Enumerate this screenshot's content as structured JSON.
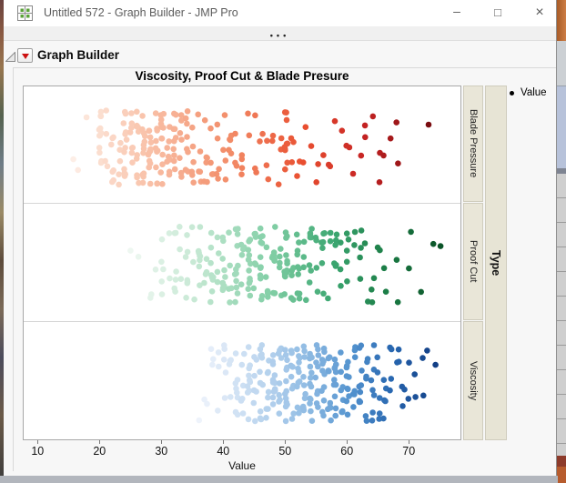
{
  "window": {
    "title": "Untitled 572 - Graph Builder - JMP Pro",
    "overflow_dots": "•••"
  },
  "icons": {
    "minimize": "–",
    "maximize": "□",
    "close": "×",
    "legend_dot": "●"
  },
  "outline": {
    "title": "Graph Builder"
  },
  "chart_data": {
    "type": "scatter",
    "variant": "jittered-dot-plot-faceted",
    "title": "Viscosity, Proof Cut & Blade Presure",
    "xlabel": "Value",
    "legend_label": "Value",
    "facet_label": "Type",
    "x_ticks": [
      10,
      20,
      30,
      40,
      50,
      60,
      70
    ],
    "x_range": [
      7.6,
      78.2
    ],
    "grid": false,
    "legend_position": "right-top",
    "panels": [
      {
        "label": "Blade Pressure",
        "colors": [
          "#fdeee6",
          "#f9c4ac",
          "#f28a66",
          "#e94f30",
          "#c62323",
          "#7a0c10"
        ],
        "columns": [
          [
            15.5,
            1
          ],
          [
            16.5,
            1
          ],
          [
            18,
            1
          ],
          [
            20,
            12
          ],
          [
            21,
            4
          ],
          [
            22,
            7
          ],
          [
            23,
            5
          ],
          [
            24,
            12
          ],
          [
            25,
            8
          ],
          [
            26,
            10
          ],
          [
            27,
            12
          ],
          [
            28,
            13
          ],
          [
            29,
            10
          ],
          [
            30,
            12
          ],
          [
            31,
            8
          ],
          [
            32,
            10
          ],
          [
            33,
            7
          ],
          [
            34,
            8
          ],
          [
            35,
            6
          ],
          [
            36,
            5
          ],
          [
            37,
            6
          ],
          [
            38,
            4
          ],
          [
            39,
            5
          ],
          [
            40,
            4
          ],
          [
            41,
            5
          ],
          [
            42,
            3
          ],
          [
            43,
            4
          ],
          [
            44,
            2
          ],
          [
            45,
            3
          ],
          [
            46,
            2
          ],
          [
            47,
            3
          ],
          [
            48,
            2
          ],
          [
            49,
            3
          ],
          [
            50,
            10
          ],
          [
            51,
            3
          ],
          [
            52,
            2
          ],
          [
            53,
            2
          ],
          [
            54,
            1
          ],
          [
            55,
            2
          ],
          [
            56,
            1
          ],
          [
            57,
            2
          ],
          [
            58,
            1
          ],
          [
            59,
            1
          ],
          [
            60,
            2
          ],
          [
            61,
            1
          ],
          [
            62,
            1
          ],
          [
            63,
            2
          ],
          [
            64,
            1
          ],
          [
            65,
            2
          ],
          [
            66,
            1
          ],
          [
            67,
            1
          ],
          [
            68,
            2
          ],
          [
            73,
            1
          ]
        ]
      },
      {
        "label": "Proof Cut",
        "colors": [
          "#eef7f1",
          "#c8e9d5",
          "#82cfa6",
          "#3ca771",
          "#1c7e47",
          "#0b5428"
        ],
        "columns": [
          [
            25,
            1
          ],
          [
            26,
            1
          ],
          [
            28,
            2
          ],
          [
            29,
            1
          ],
          [
            30,
            5
          ],
          [
            31,
            2
          ],
          [
            32,
            6
          ],
          [
            33,
            3
          ],
          [
            34,
            7
          ],
          [
            35,
            3
          ],
          [
            36,
            8
          ],
          [
            37,
            4
          ],
          [
            38,
            9
          ],
          [
            39,
            4
          ],
          [
            40,
            11
          ],
          [
            41,
            5
          ],
          [
            42,
            12
          ],
          [
            43,
            5
          ],
          [
            44,
            13
          ],
          [
            45,
            6
          ],
          [
            46,
            12
          ],
          [
            47,
            5
          ],
          [
            48,
            11
          ],
          [
            49,
            5
          ],
          [
            50,
            13
          ],
          [
            51,
            5
          ],
          [
            52,
            10
          ],
          [
            53,
            4
          ],
          [
            54,
            8
          ],
          [
            55,
            4
          ],
          [
            56,
            7
          ],
          [
            57,
            3
          ],
          [
            58,
            6
          ],
          [
            59,
            3
          ],
          [
            60,
            5
          ],
          [
            61,
            2
          ],
          [
            62,
            4
          ],
          [
            63,
            2
          ],
          [
            64,
            3
          ],
          [
            65,
            2
          ],
          [
            66,
            2
          ],
          [
            68,
            2
          ],
          [
            70,
            2
          ],
          [
            72,
            1
          ],
          [
            74,
            1
          ],
          [
            75,
            1
          ]
        ]
      },
      {
        "label": "Viscosity",
        "colors": [
          "#eef3fb",
          "#c9ddf2",
          "#92bde4",
          "#5292ce",
          "#2867b0",
          "#123f86"
        ],
        "columns": [
          [
            36,
            1
          ],
          [
            37,
            2
          ],
          [
            38,
            3
          ],
          [
            39,
            3
          ],
          [
            40,
            5
          ],
          [
            41,
            4
          ],
          [
            42,
            8
          ],
          [
            43,
            6
          ],
          [
            44,
            10
          ],
          [
            45,
            7
          ],
          [
            46,
            11
          ],
          [
            47,
            8
          ],
          [
            48,
            12
          ],
          [
            49,
            9
          ],
          [
            50,
            13
          ],
          [
            51,
            9
          ],
          [
            52,
            12
          ],
          [
            53,
            10
          ],
          [
            54,
            13
          ],
          [
            55,
            10
          ],
          [
            56,
            12
          ],
          [
            57,
            9
          ],
          [
            58,
            11
          ],
          [
            59,
            8
          ],
          [
            60,
            10
          ],
          [
            61,
            7
          ],
          [
            62,
            9
          ],
          [
            63,
            6
          ],
          [
            64,
            7
          ],
          [
            65,
            5
          ],
          [
            66,
            5
          ],
          [
            67,
            4
          ],
          [
            68,
            3
          ],
          [
            69,
            3
          ],
          [
            70,
            2
          ],
          [
            71,
            2
          ],
          [
            72,
            2
          ],
          [
            73,
            1
          ],
          [
            74,
            1
          ]
        ]
      }
    ]
  }
}
